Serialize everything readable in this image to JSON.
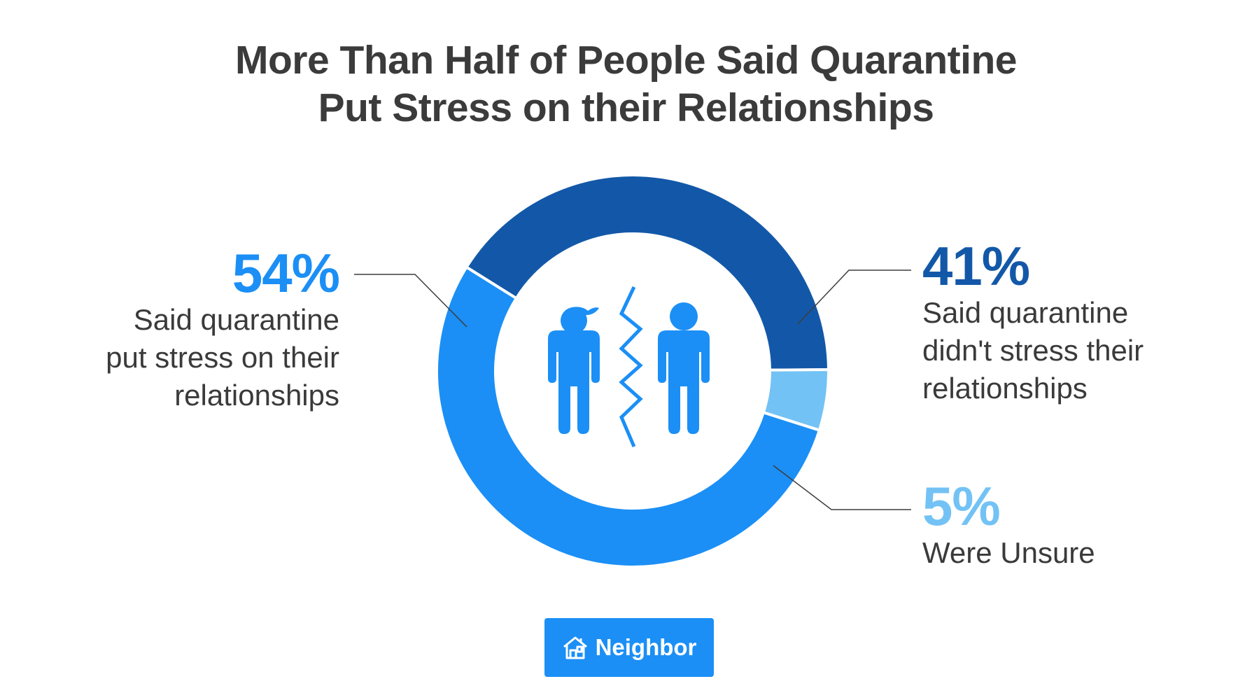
{
  "colors": {
    "stress": "#1b8ff5",
    "no_stress": "#1358a8",
    "unsure": "#73c2f5",
    "leader": "#3d3d3d",
    "logo_bg": "#1b8ff5"
  },
  "chart_data": {
    "type": "pie",
    "style": "donut",
    "title": "More Than Half of People Said Quarantine Put Stress on their Relationships",
    "title_lines": [
      "More Than Half of People Said Quarantine",
      "Put Stress on their Relationships"
    ],
    "slices": [
      {
        "key": "no_stress",
        "value": 41,
        "label": "41%",
        "description": [
          "Said quarantine",
          "didn't stress their",
          "relationships"
        ]
      },
      {
        "key": "unsure",
        "value": 5,
        "label": "5%",
        "description": [
          "Were Unsure"
        ]
      },
      {
        "key": "stress",
        "value": 54,
        "label": "54%",
        "description": [
          "Said quarantine",
          "put stress on their",
          "relationships"
        ]
      }
    ],
    "center_icon": "couple-separated-icon"
  },
  "labels": {
    "stress_pct": "54%",
    "stress_line1": "Said quarantine",
    "stress_line2": "put stress on their",
    "stress_line3": "relationships",
    "nostress_pct": "41%",
    "nostress_line1": "Said quarantine",
    "nostress_line2": "didn't stress their",
    "nostress_line3": "relationships",
    "unsure_pct": "5%",
    "unsure_line1": "Were Unsure"
  },
  "brand": {
    "name": "Neighbor",
    "icon": "house-icon"
  }
}
